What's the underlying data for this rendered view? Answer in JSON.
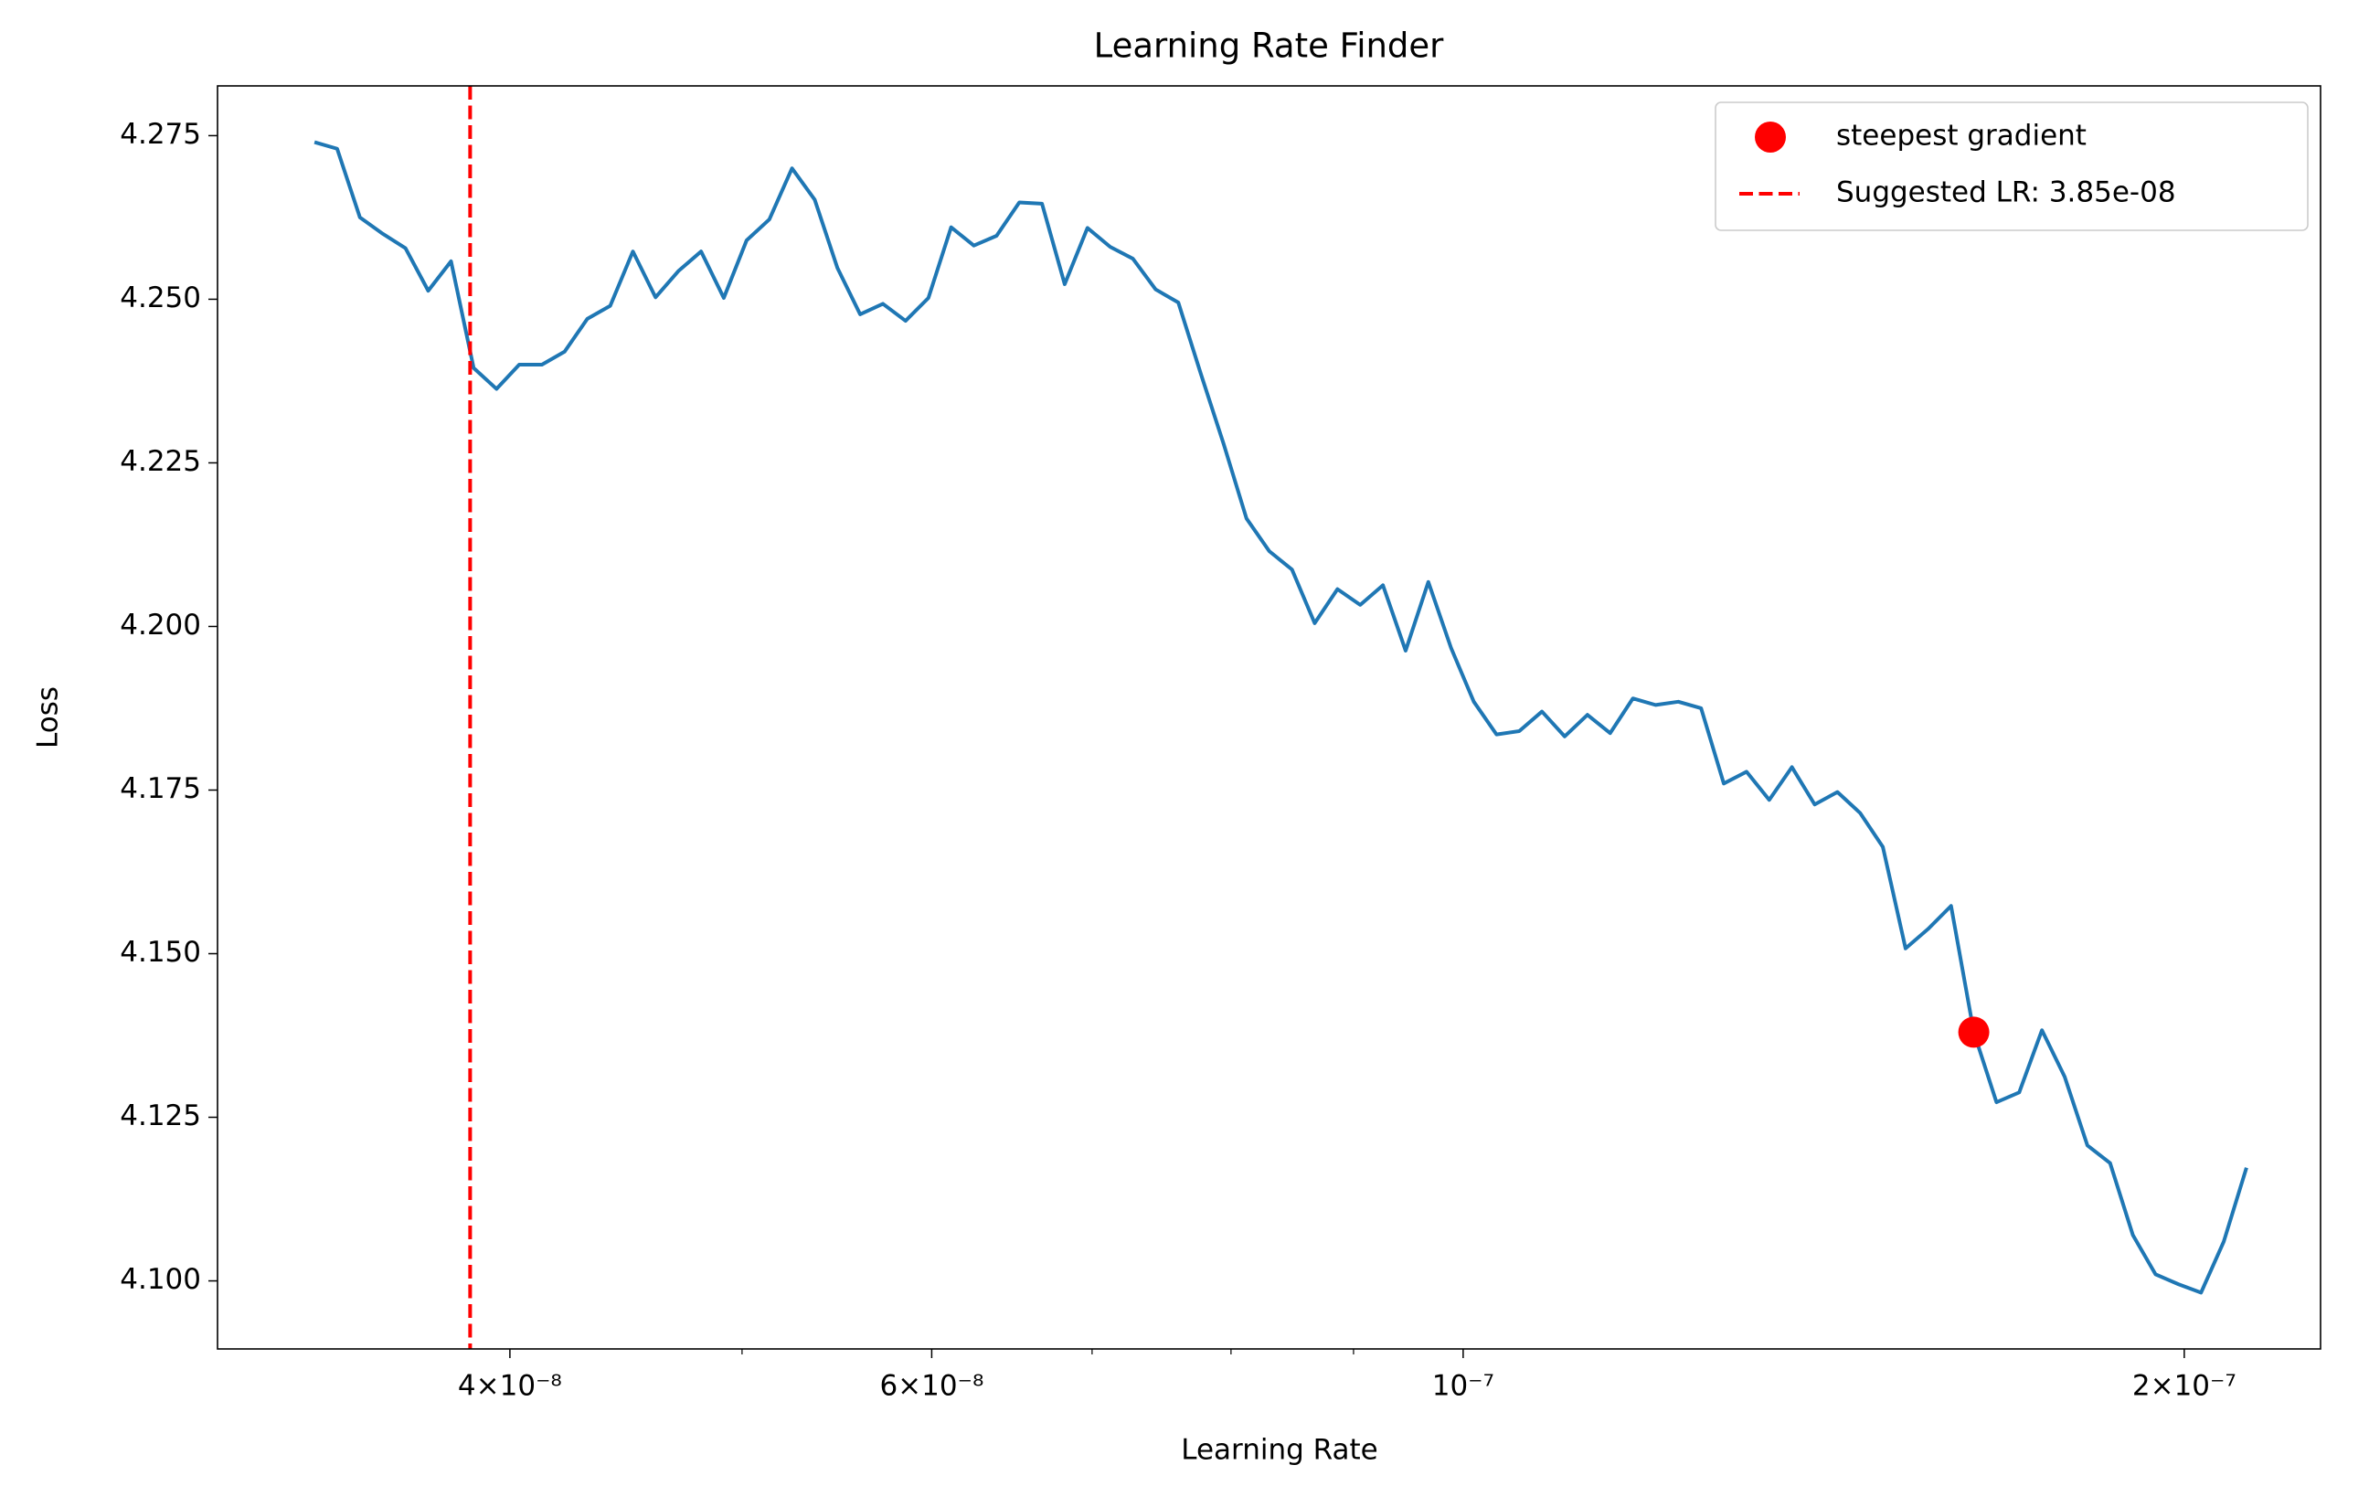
{
  "chart_data": {
    "type": "line",
    "title": "Learning Rate Finder",
    "xlabel": "Learning Rate",
    "ylabel": "Loss",
    "xscale": "log",
    "color": "#1f77b4",
    "legend": "upper right",
    "x": [
      3.315e-08,
      3.388e-08,
      3.463e-08,
      3.54e-08,
      3.618e-08,
      3.698e-08,
      3.78e-08,
      3.863e-08,
      3.949e-08,
      4.036e-08,
      4.125e-08,
      4.216e-08,
      4.309e-08,
      4.405e-08,
      4.502e-08,
      4.601e-08,
      4.703e-08,
      4.807e-08,
      4.913e-08,
      5.022e-08,
      5.133e-08,
      5.246e-08,
      5.362e-08,
      5.48e-08,
      5.601e-08,
      5.725e-08,
      5.851e-08,
      5.981e-08,
      6.113e-08,
      6.248e-08,
      6.386e-08,
      6.527e-08,
      6.671e-08,
      6.818e-08,
      6.969e-08,
      7.123e-08,
      7.28e-08,
      7.441e-08,
      7.605e-08,
      7.773e-08,
      7.945e-08,
      8.12e-08,
      8.3e-08,
      8.483e-08,
      8.67e-08,
      8.862e-08,
      9.058e-08,
      9.258e-08,
      9.462e-08,
      9.671e-08,
      9.885e-08,
      1.0103e-07,
      1.0326e-07,
      1.0554e-07,
      1.0787e-07,
      1.1025e-07,
      1.1269e-07,
      1.1518e-07,
      1.1772e-07,
      1.2032e-07,
      1.2298e-07,
      1.257e-07,
      1.2847e-07,
      1.3131e-07,
      1.3421e-07,
      1.3717e-07,
      1.402e-07,
      1.433e-07,
      1.4646e-07,
      1.497e-07,
      1.53e-07,
      1.5638e-07,
      1.5984e-07,
      1.6337e-07,
      1.6697e-07,
      1.7066e-07,
      1.7443e-07,
      1.7828e-07,
      1.8222e-07,
      1.8624e-07,
      1.9036e-07,
      1.9456e-07,
      1.9886e-07,
      2.0325e-07,
      2.0774e-07,
      2.1233e-07
    ],
    "values": [
      4.274,
      4.273,
      4.2625,
      4.26,
      4.2578,
      4.2513,
      4.2558,
      4.2395,
      4.2363,
      4.24,
      4.24,
      4.242,
      4.247,
      4.249,
      4.2573,
      4.2503,
      4.2543,
      4.2573,
      4.2502,
      4.259,
      4.2622,
      4.27,
      4.2652,
      4.2548,
      4.2477,
      4.2493,
      4.2467,
      4.2502,
      4.261,
      4.2582,
      4.2597,
      4.2648,
      4.2646,
      4.2523,
      4.2609,
      4.258,
      4.2562,
      4.2515,
      4.2495,
      4.2385,
      4.2278,
      4.2165,
      4.2115,
      4.2087,
      4.2005,
      4.2057,
      4.2033,
      4.2063,
      4.1963,
      4.2068,
      4.1967,
      4.1885,
      4.1835,
      4.184,
      4.187,
      4.1832,
      4.1865,
      4.1837,
      4.189,
      4.188,
      4.1885,
      4.1875,
      4.176,
      4.1778,
      4.1735,
      4.1785,
      4.1728,
      4.1747,
      4.1715,
      4.1663,
      4.1508,
      4.1538,
      4.1573,
      4.138,
      4.1273,
      4.1288,
      4.1383,
      4.1312,
      4.1207,
      4.118,
      4.107,
      4.101,
      4.0995,
      4.0982,
      4.106,
      4.1173
    ],
    "points": [
      {
        "name": "steepest gradient",
        "type": "scatter",
        "color": "#ff0000",
        "x": [
          1.6337e-07
        ],
        "values": [
          4.138
        ]
      }
    ],
    "vlines": [
      {
        "name": "Suggested LR: 3.85e-08",
        "color": "#ff0000",
        "style": "dashed",
        "x": 3.85e-08
      }
    ],
    "xlim": [
      3.02e-08,
      2.28e-07
    ],
    "ylim": [
      4.0896,
      4.2826
    ],
    "xticks": [
      {
        "value": 4e-08,
        "label": "4×10⁻⁸"
      },
      {
        "value": 6e-08,
        "label": "6×10⁻⁸"
      },
      {
        "value": 1e-07,
        "label": "10⁻⁷"
      },
      {
        "value": 2e-07,
        "label": "2×10⁻⁷"
      }
    ],
    "xminorticks": [
      5e-08,
      7e-08,
      8e-08,
      9e-08
    ],
    "yticks": [
      {
        "value": 4.1,
        "label": "4.100"
      },
      {
        "value": 4.125,
        "label": "4.125"
      },
      {
        "value": 4.15,
        "label": "4.150"
      },
      {
        "value": 4.175,
        "label": "4.175"
      },
      {
        "value": 4.2,
        "label": "4.200"
      },
      {
        "value": 4.225,
        "label": "4.225"
      },
      {
        "value": 4.25,
        "label": "4.250"
      },
      {
        "value": 4.275,
        "label": "4.275"
      }
    ]
  }
}
